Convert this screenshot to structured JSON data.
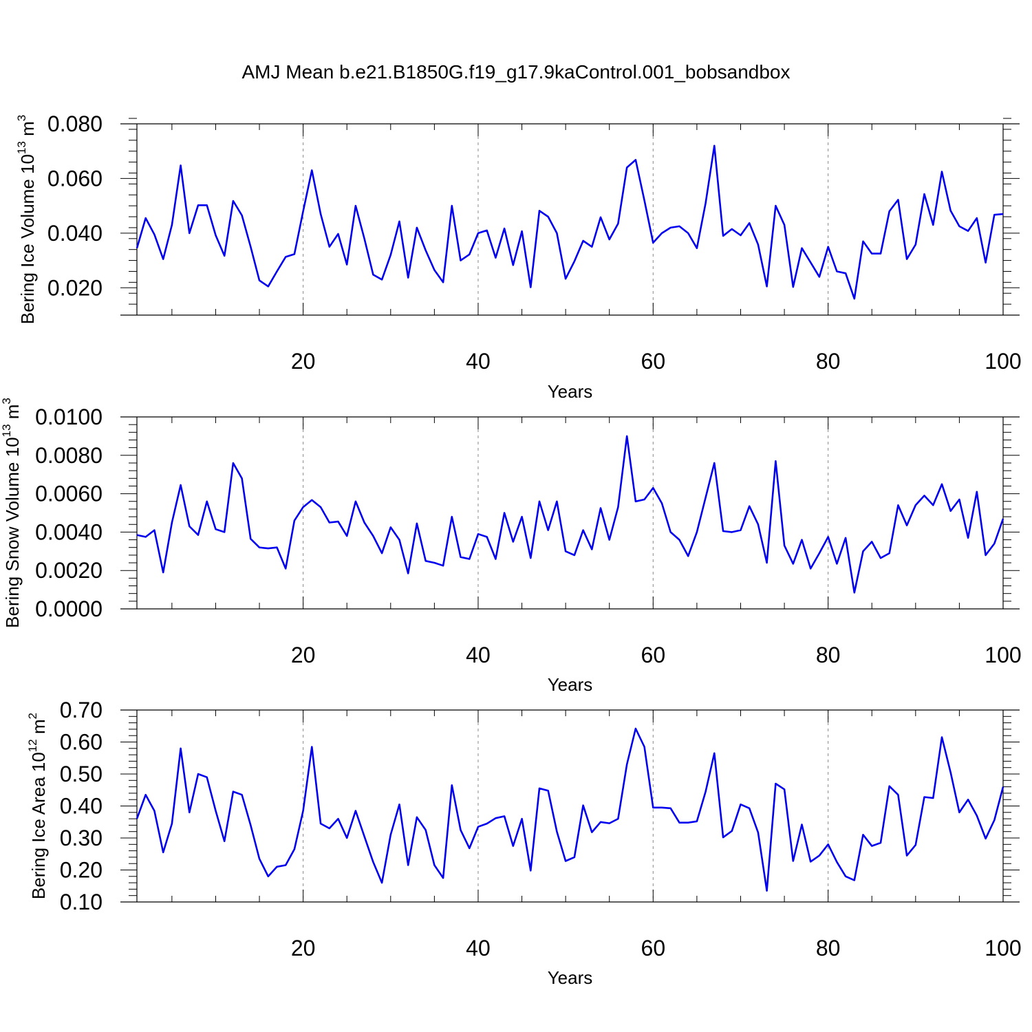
{
  "title": "AMJ Mean b.e21.B1850G.f19_g17.9kaControl.001_bobsandbox",
  "line_color": "#0000ee",
  "grid_color": "#888888",
  "chart_data": [
    {
      "type": "line",
      "xlabel": "Years",
      "ylabel": {
        "base": "Bering Ice Volume 10",
        "exp": "13",
        "unit": " m",
        "unit_exp": "3"
      },
      "xlim": [
        1,
        100
      ],
      "ylim": [
        0.01,
        0.08
      ],
      "xticks": [
        20,
        40,
        60,
        80,
        100
      ],
      "yticks": [
        0.02,
        0.04,
        0.06,
        0.08
      ],
      "yticklabels": [
        "0.020",
        "0.040",
        "0.060",
        "0.080"
      ],
      "grid_x": true,
      "x": [
        1,
        2,
        3,
        4,
        5,
        6,
        7,
        8,
        9,
        10,
        11,
        12,
        13,
        14,
        15,
        16,
        17,
        18,
        19,
        20,
        21,
        22,
        23,
        24,
        25,
        26,
        27,
        28,
        29,
        30,
        31,
        32,
        33,
        34,
        35,
        36,
        37,
        38,
        39,
        40,
        41,
        42,
        43,
        44,
        45,
        46,
        47,
        48,
        49,
        50,
        51,
        52,
        53,
        54,
        55,
        56,
        57,
        58,
        59,
        60,
        61,
        62,
        63,
        64,
        65,
        66,
        67,
        68,
        69,
        70,
        71,
        72,
        73,
        74,
        75,
        76,
        77,
        78,
        79,
        80,
        81,
        82,
        83,
        84,
        85,
        86,
        87,
        88,
        89,
        90,
        91,
        92,
        93,
        94,
        95,
        96,
        97,
        98,
        99,
        100
      ],
      "series": [
        {
          "values": [
            0.0345,
            0.0455,
            0.0395,
            0.0305,
            0.043,
            0.0648,
            0.04,
            0.0502,
            0.0502,
            0.0392,
            0.0317,
            0.0518,
            0.0465,
            0.035,
            0.0227,
            0.0205,
            0.026,
            0.0313,
            0.0323,
            0.048,
            0.063,
            0.047,
            0.035,
            0.0397,
            0.0285,
            0.05,
            0.038,
            0.0248,
            0.023,
            0.032,
            0.0443,
            0.0237,
            0.042,
            0.0337,
            0.0265,
            0.022,
            0.05,
            0.03,
            0.0322,
            0.04,
            0.041,
            0.031,
            0.0417,
            0.0283,
            0.0407,
            0.0202,
            0.0482,
            0.046,
            0.04,
            0.0233,
            0.0297,
            0.0372,
            0.035,
            0.0458,
            0.0377,
            0.0435,
            0.064,
            0.0668,
            0.052,
            0.0365,
            0.04,
            0.042,
            0.0425,
            0.04,
            0.0345,
            0.051,
            0.072,
            0.039,
            0.0415,
            0.0392,
            0.0437,
            0.0358,
            0.0205,
            0.05,
            0.043,
            0.0203,
            0.0345,
            0.0293,
            0.024,
            0.035,
            0.026,
            0.0253,
            0.016,
            0.037,
            0.0325,
            0.0325,
            0.048,
            0.0522,
            0.0305,
            0.0358,
            0.0543,
            0.043,
            0.0625,
            0.0482,
            0.0425,
            0.0408,
            0.0455,
            0.0292,
            0.0467,
            0.047
          ]
        }
      ]
    },
    {
      "type": "line",
      "xlabel": "Years",
      "ylabel": {
        "base": "Bering Snow Volume 10",
        "exp": "13",
        "unit": " m",
        "unit_exp": "3"
      },
      "xlim": [
        1,
        100
      ],
      "ylim": [
        0.0,
        0.01
      ],
      "xticks": [
        20,
        40,
        60,
        80,
        100
      ],
      "yticks": [
        0.0,
        0.002,
        0.004,
        0.006,
        0.008,
        0.01
      ],
      "yticklabels": [
        "0.0000",
        "0.0020",
        "0.0040",
        "0.0060",
        "0.0080",
        "0.0100"
      ],
      "grid_x": true,
      "x": [
        1,
        2,
        3,
        4,
        5,
        6,
        7,
        8,
        9,
        10,
        11,
        12,
        13,
        14,
        15,
        16,
        17,
        18,
        19,
        20,
        21,
        22,
        23,
        24,
        25,
        26,
        27,
        28,
        29,
        30,
        31,
        32,
        33,
        34,
        35,
        36,
        37,
        38,
        39,
        40,
        41,
        42,
        43,
        44,
        45,
        46,
        47,
        48,
        49,
        50,
        51,
        52,
        53,
        54,
        55,
        56,
        57,
        58,
        59,
        60,
        61,
        62,
        63,
        64,
        65,
        66,
        67,
        68,
        69,
        70,
        71,
        72,
        73,
        74,
        75,
        76,
        77,
        78,
        79,
        80,
        81,
        82,
        83,
        84,
        85,
        86,
        87,
        88,
        89,
        90,
        91,
        92,
        93,
        94,
        95,
        96,
        97,
        98,
        99,
        100
      ],
      "series": [
        {
          "values": [
            0.00385,
            0.00375,
            0.0041,
            0.0019,
            0.0045,
            0.00645,
            0.0043,
            0.00385,
            0.0056,
            0.00415,
            0.004,
            0.0076,
            0.0068,
            0.00365,
            0.0032,
            0.00315,
            0.0032,
            0.0021,
            0.0046,
            0.0053,
            0.00567,
            0.0053,
            0.0045,
            0.00455,
            0.0038,
            0.0056,
            0.0045,
            0.0038,
            0.0029,
            0.00425,
            0.0036,
            0.00185,
            0.00445,
            0.0025,
            0.0024,
            0.00225,
            0.0048,
            0.0027,
            0.0026,
            0.0039,
            0.00375,
            0.0026,
            0.005,
            0.0035,
            0.0048,
            0.00265,
            0.0056,
            0.0041,
            0.0056,
            0.003,
            0.0028,
            0.0041,
            0.0031,
            0.00525,
            0.0036,
            0.0053,
            0.009,
            0.0056,
            0.0057,
            0.0063,
            0.0055,
            0.004,
            0.0036,
            0.00275,
            0.004,
            0.0058,
            0.0076,
            0.00405,
            0.004,
            0.0041,
            0.00535,
            0.0044,
            0.0024,
            0.0077,
            0.0033,
            0.00235,
            0.0036,
            0.0021,
            0.0029,
            0.00375,
            0.00235,
            0.0037,
            0.00085,
            0.003,
            0.0035,
            0.00265,
            0.0029,
            0.0054,
            0.00435,
            0.0054,
            0.0059,
            0.0054,
            0.0065,
            0.0051,
            0.0057,
            0.0037,
            0.0061,
            0.0028,
            0.0034,
            0.0047
          ]
        }
      ]
    },
    {
      "type": "line",
      "xlabel": "Years",
      "ylabel": {
        "base": "Bering Ice Area 10",
        "exp": "12",
        "unit": " m",
        "unit_exp": "2"
      },
      "xlim": [
        1,
        100
      ],
      "ylim": [
        0.1,
        0.7
      ],
      "xticks": [
        20,
        40,
        60,
        80,
        100
      ],
      "yticks": [
        0.1,
        0.2,
        0.3,
        0.4,
        0.5,
        0.6,
        0.7
      ],
      "yticklabels": [
        "0.10",
        "0.20",
        "0.30",
        "0.40",
        "0.50",
        "0.60",
        "0.70"
      ],
      "grid_x": true,
      "x": [
        1,
        2,
        3,
        4,
        5,
        6,
        7,
        8,
        9,
        10,
        11,
        12,
        13,
        14,
        15,
        16,
        17,
        18,
        19,
        20,
        21,
        22,
        23,
        24,
        25,
        26,
        27,
        28,
        29,
        30,
        31,
        32,
        33,
        34,
        35,
        36,
        37,
        38,
        39,
        40,
        41,
        42,
        43,
        44,
        45,
        46,
        47,
        48,
        49,
        50,
        51,
        52,
        53,
        54,
        55,
        56,
        57,
        58,
        59,
        60,
        61,
        62,
        63,
        64,
        65,
        66,
        67,
        68,
        69,
        70,
        71,
        72,
        73,
        74,
        75,
        76,
        77,
        78,
        79,
        80,
        81,
        82,
        83,
        84,
        85,
        86,
        87,
        88,
        89,
        90,
        91,
        92,
        93,
        94,
        95,
        96,
        97,
        98,
        99,
        100
      ],
      "series": [
        {
          "values": [
            0.36,
            0.435,
            0.385,
            0.255,
            0.345,
            0.58,
            0.38,
            0.5,
            0.49,
            0.385,
            0.29,
            0.445,
            0.435,
            0.34,
            0.235,
            0.18,
            0.21,
            0.215,
            0.265,
            0.385,
            0.585,
            0.345,
            0.33,
            0.36,
            0.3,
            0.385,
            0.305,
            0.225,
            0.16,
            0.31,
            0.405,
            0.215,
            0.365,
            0.325,
            0.215,
            0.175,
            0.465,
            0.325,
            0.268,
            0.335,
            0.345,
            0.362,
            0.368,
            0.275,
            0.36,
            0.198,
            0.455,
            0.448,
            0.32,
            0.228,
            0.24,
            0.402,
            0.318,
            0.35,
            0.346,
            0.36,
            0.53,
            0.642,
            0.585,
            0.395,
            0.395,
            0.393,
            0.348,
            0.348,
            0.352,
            0.445,
            0.565,
            0.302,
            0.322,
            0.405,
            0.393,
            0.317,
            0.135,
            0.47,
            0.452,
            0.228,
            0.342,
            0.226,
            0.245,
            0.28,
            0.225,
            0.18,
            0.168,
            0.31,
            0.275,
            0.285,
            0.462,
            0.435,
            0.245,
            0.278,
            0.428,
            0.425,
            0.615,
            0.505,
            0.38,
            0.42,
            0.37,
            0.298,
            0.356,
            0.46
          ]
        }
      ]
    }
  ]
}
